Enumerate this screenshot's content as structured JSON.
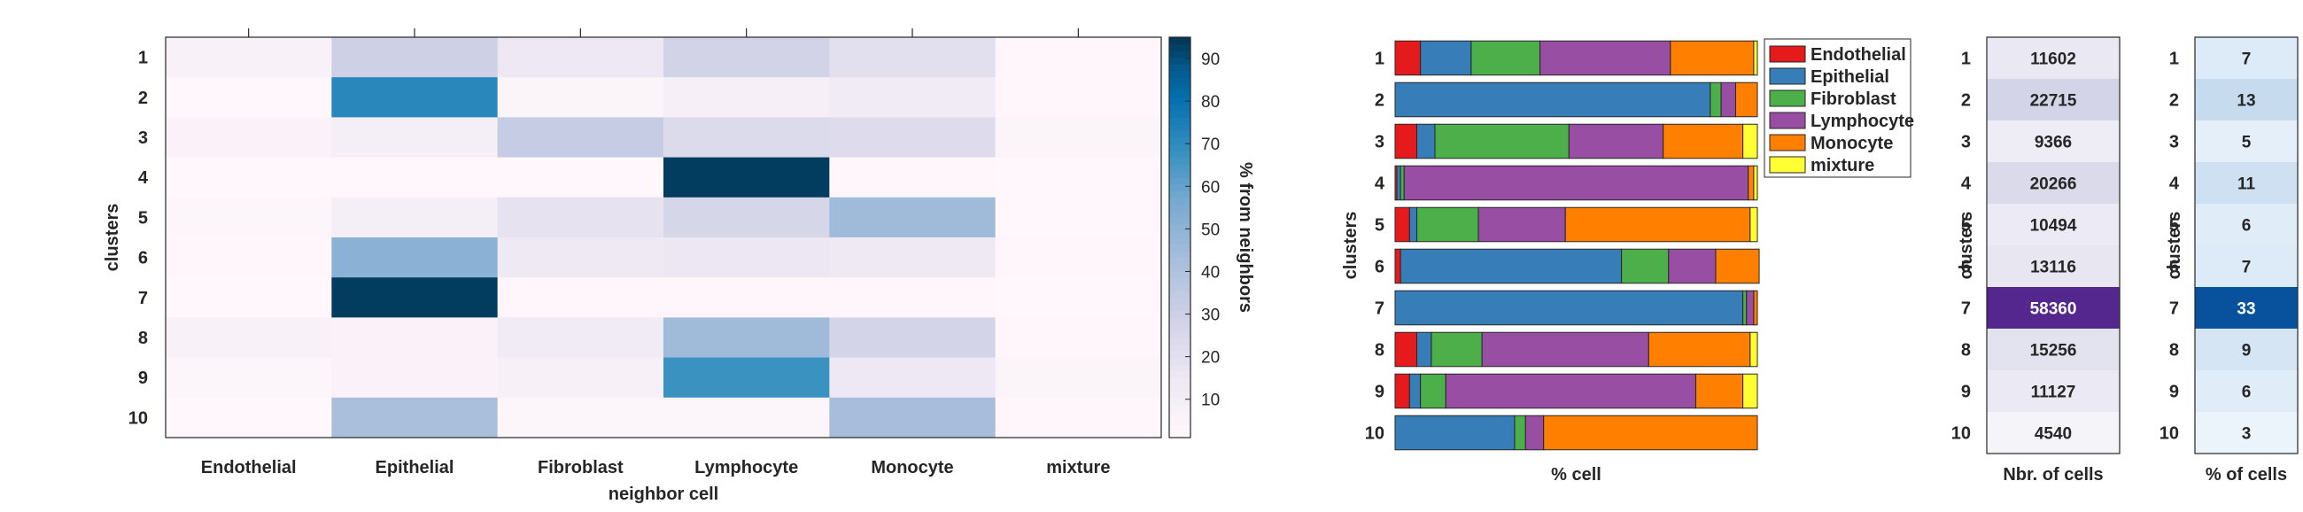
{
  "chart_data": [
    {
      "type": "heatmap",
      "xlabel": "neighbor cell",
      "ylabel": "clusters",
      "colorbar_label": "% from neighbors",
      "categories": [
        "Endothelial",
        "Epithelial",
        "Fibroblast",
        "Lymphocyte",
        "Monocyte",
        "mixture"
      ],
      "rows": [
        "1",
        "2",
        "3",
        "4",
        "5",
        "6",
        "7",
        "8",
        "9",
        "10"
      ],
      "values": [
        [
          6,
          30,
          14,
          28,
          20,
          2
        ],
        [
          1,
          72,
          4,
          8,
          12,
          2
        ],
        [
          5,
          9,
          33,
          23,
          22,
          4
        ],
        [
          1,
          1,
          1,
          94,
          2,
          1
        ],
        [
          3,
          9,
          18,
          26,
          45,
          1
        ],
        [
          2,
          51,
          13,
          15,
          13,
          2
        ],
        [
          1,
          94,
          2,
          2,
          2,
          1
        ],
        [
          6,
          5,
          12,
          45,
          27,
          2
        ],
        [
          3,
          5,
          7,
          68,
          14,
          4
        ],
        [
          1,
          42,
          3,
          3,
          43,
          2
        ]
      ],
      "colorbar_ticks": [
        10,
        20,
        30,
        40,
        50,
        60,
        70,
        80,
        90
      ],
      "clim": [
        1,
        95
      ]
    },
    {
      "type": "bar",
      "orientation": "horizontal-stacked",
      "xlabel": "% cell",
      "ylabel": "clusters",
      "categories": [
        "1",
        "2",
        "3",
        "4",
        "5",
        "6",
        "7",
        "8",
        "9",
        "10"
      ],
      "series": [
        {
          "name": "Endothelial",
          "color": "#e41a1c",
          "values": [
            7,
            0,
            6,
            0.5,
            4,
            1.5,
            0,
            6,
            4,
            0
          ]
        },
        {
          "name": "Epithelial",
          "color": "#377eb8",
          "values": [
            14,
            87,
            5,
            1,
            2,
            61,
            96,
            4,
            3,
            33
          ]
        },
        {
          "name": "Fibroblast",
          "color": "#4daf4a",
          "values": [
            19,
            3,
            37,
            1,
            17,
            13,
            1,
            14,
            7,
            3
          ]
        },
        {
          "name": "Lymphocyte",
          "color": "#984ea3",
          "values": [
            36,
            4,
            26,
            95,
            24,
            13,
            2,
            46,
            69,
            5
          ]
        },
        {
          "name": "Monocyte",
          "color": "#ff7f00",
          "values": [
            23,
            6,
            22,
            1.5,
            51,
            12,
            1,
            28,
            13,
            59
          ]
        },
        {
          "name": "mixture",
          "color": "#ffff33",
          "values": [
            1,
            0,
            4,
            1,
            2,
            0,
            0,
            2,
            4,
            0
          ]
        }
      ],
      "xlim": [
        0,
        100
      ],
      "legend": "top-right outside"
    },
    {
      "type": "table",
      "xlabel": "Nbr. of cells",
      "ylabel": "clusters",
      "rows": [
        "1",
        "2",
        "3",
        "4",
        "5",
        "6",
        "7",
        "8",
        "9",
        "10"
      ],
      "values": [
        11602,
        22715,
        9366,
        20266,
        10494,
        13116,
        58360,
        15256,
        11127,
        4540
      ],
      "labels": [
        "11602",
        "22715",
        "9366",
        "20266",
        "10494",
        "13116",
        "58360",
        "15256",
        "11127",
        "4540"
      ],
      "colormap": "purples"
    },
    {
      "type": "table",
      "xlabel": "% of cells",
      "ylabel": "clusters",
      "rows": [
        "1",
        "2",
        "3",
        "4",
        "5",
        "6",
        "7",
        "8",
        "9",
        "10"
      ],
      "values": [
        7,
        13,
        5,
        11,
        6,
        7,
        33,
        9,
        6,
        3
      ],
      "labels": [
        "7",
        "13",
        "5",
        "11",
        "6",
        "7",
        "33",
        "9",
        "6",
        "3"
      ],
      "colormap": "blues"
    }
  ]
}
